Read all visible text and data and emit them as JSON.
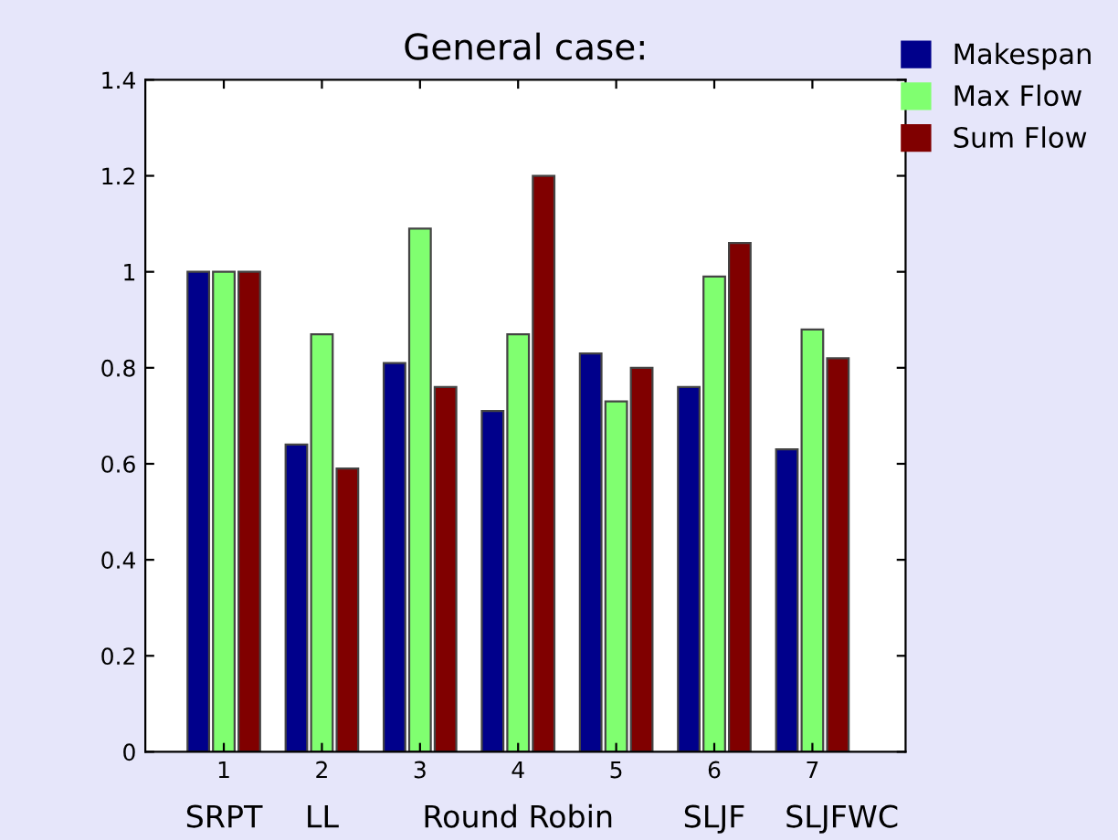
{
  "chart_data": {
    "type": "bar",
    "title": "General case:",
    "categories": [
      "1",
      "2",
      "3",
      "4",
      "5",
      "6",
      "7"
    ],
    "series": [
      {
        "name": "Makespan",
        "color": "#00008b",
        "values": [
          1.0,
          0.64,
          0.81,
          0.71,
          0.83,
          0.76,
          0.63
        ]
      },
      {
        "name": "Max Flow",
        "color": "#80ff70",
        "values": [
          1.0,
          0.87,
          1.09,
          0.87,
          0.73,
          0.99,
          0.88
        ]
      },
      {
        "name": "Sum Flow",
        "color": "#800000",
        "values": [
          1.0,
          0.59,
          0.76,
          1.2,
          0.8,
          1.06,
          0.82
        ]
      }
    ],
    "ylim": [
      0,
      1.4
    ],
    "yticks": [
      0,
      0.2,
      0.4,
      0.6,
      0.8,
      1,
      1.2,
      1.4
    ],
    "annotations": [
      "SRPT",
      "LL",
      "Round Robin",
      "SLJF",
      "SLJFWC"
    ],
    "legend": "top right",
    "grid": false
  }
}
